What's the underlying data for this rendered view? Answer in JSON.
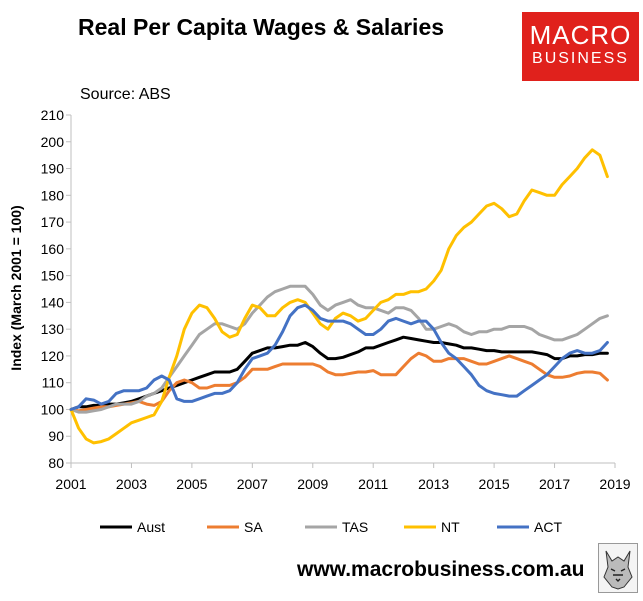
{
  "header": {
    "title": "Real Per Capita Wages & Salaries",
    "source": "Source: ABS",
    "logo_line1": "MACRO",
    "logo_line2": "BUSINESS",
    "website": "www.macrobusiness.com.au"
  },
  "colors": {
    "logo_bg": "#e0211c",
    "axis": "#bfbfbf"
  },
  "chart_data": {
    "type": "line",
    "title": "Real Per Capita Wages & Salaries",
    "xlabel": "",
    "ylabel": "Index (March 2001 = 100)",
    "xlim": [
      2001,
      2019
    ],
    "ylim": [
      80,
      210
    ],
    "yticks": [
      80,
      90,
      100,
      110,
      120,
      130,
      140,
      150,
      160,
      170,
      180,
      190,
      200,
      210
    ],
    "xticks": [
      2001,
      2003,
      2005,
      2007,
      2009,
      2011,
      2013,
      2015,
      2017,
      2019
    ],
    "grid": false,
    "legend": "bottom",
    "x": [
      2001.0,
      2001.25,
      2001.5,
      2001.75,
      2002.0,
      2002.25,
      2002.5,
      2002.75,
      2003.0,
      2003.25,
      2003.5,
      2003.75,
      2004.0,
      2004.25,
      2004.5,
      2004.75,
      2005.0,
      2005.25,
      2005.5,
      2005.75,
      2006.0,
      2006.25,
      2006.5,
      2006.75,
      2007.0,
      2007.25,
      2007.5,
      2007.75,
      2008.0,
      2008.25,
      2008.5,
      2008.75,
      2009.0,
      2009.25,
      2009.5,
      2009.75,
      2010.0,
      2010.25,
      2010.5,
      2010.75,
      2011.0,
      2011.25,
      2011.5,
      2011.75,
      2012.0,
      2012.25,
      2012.5,
      2012.75,
      2013.0,
      2013.25,
      2013.5,
      2013.75,
      2014.0,
      2014.25,
      2014.5,
      2014.75,
      2015.0,
      2015.25,
      2015.5,
      2015.75,
      2016.0,
      2016.25,
      2016.5,
      2016.75,
      2017.0,
      2017.25,
      2017.5,
      2017.75,
      2018.0,
      2018.25,
      2018.5,
      2018.75
    ],
    "series": [
      {
        "name": "Aust",
        "color": "#000000",
        "values": [
          100,
          101,
          101,
          101.5,
          101.5,
          102,
          102,
          102.5,
          103,
          104,
          105,
          106,
          107,
          108,
          109,
          110,
          111,
          112,
          113,
          114,
          114,
          114,
          115,
          118,
          121,
          122,
          123,
          123,
          123.5,
          124,
          124,
          125,
          123.5,
          121,
          119,
          119,
          119.5,
          120.5,
          121.5,
          123,
          123,
          124,
          125,
          126,
          127,
          126.5,
          126,
          125.5,
          125,
          125,
          124.5,
          124,
          123,
          123,
          122.5,
          122,
          122,
          121.5,
          121.5,
          121.5,
          121.5,
          121.5,
          121,
          120.5,
          119,
          119,
          120,
          120,
          120.5,
          120.5,
          121,
          121
        ]
      },
      {
        "name": "SA",
        "color": "#ed7d31",
        "values": [
          100,
          99.5,
          100,
          100.5,
          101,
          101,
          101.5,
          102,
          102.5,
          103,
          102,
          101.5,
          103,
          107,
          110,
          111,
          110,
          108,
          108,
          109,
          109,
          109,
          110,
          112,
          115,
          115,
          115,
          116,
          117,
          117,
          117,
          117,
          117,
          116,
          114,
          113,
          113,
          113.5,
          114,
          114,
          114.5,
          113,
          113,
          113,
          116,
          119,
          121,
          120,
          118,
          118,
          119,
          119,
          119,
          118,
          117,
          117,
          118,
          119,
          120,
          119,
          118,
          117,
          115,
          113,
          112,
          112,
          112.5,
          113.5,
          114,
          114,
          113.5,
          111
        ]
      },
      {
        "name": "TAS",
        "color": "#a5a5a5",
        "values": [
          100,
          99,
          99,
          99.5,
          100,
          101,
          102,
          102,
          102,
          103,
          105,
          106,
          108,
          112,
          116,
          120,
          124,
          128,
          130,
          132,
          132,
          131,
          130,
          132,
          136,
          139,
          142,
          144,
          145,
          146,
          146,
          146,
          143,
          139,
          137,
          139,
          140,
          141,
          139,
          138,
          138,
          137,
          136,
          138,
          138,
          137,
          134,
          130,
          130,
          131,
          132,
          131,
          129,
          128,
          129,
          129,
          130,
          130,
          131,
          131,
          131,
          130,
          128,
          127,
          126,
          126,
          127,
          128,
          130,
          132,
          134,
          135
        ]
      },
      {
        "name": "NT",
        "color": "#ffc000",
        "values": [
          100,
          93,
          89,
          87.5,
          88,
          89,
          91,
          93,
          95,
          96,
          97,
          98,
          103,
          112,
          120,
          130,
          136,
          139,
          138,
          134,
          129,
          127,
          128,
          134,
          139,
          138,
          135,
          135,
          138,
          140,
          141,
          140,
          136,
          132,
          130,
          134,
          136,
          135,
          133,
          134,
          137,
          140,
          141,
          143,
          143,
          144,
          144,
          145,
          148,
          152,
          160,
          165,
          168,
          170,
          173,
          176,
          177,
          175,
          172,
          173,
          178,
          182,
          181,
          180,
          180,
          184,
          187,
          190,
          194,
          197,
          195,
          187
        ]
      },
      {
        "name": "ACT",
        "color": "#4472c4",
        "values": [
          100,
          101,
          104,
          103.5,
          102,
          103,
          106,
          107,
          107,
          107,
          108,
          111,
          112.5,
          111,
          104,
          103,
          103,
          104,
          105,
          106,
          106,
          107,
          110,
          115,
          119,
          120,
          121,
          124,
          129,
          135,
          138,
          139,
          137,
          134,
          133,
          133,
          133,
          132,
          130,
          128,
          128,
          130,
          133,
          134,
          133,
          132,
          133,
          133,
          130,
          125,
          121,
          119,
          116,
          113,
          109,
          107,
          106,
          105.5,
          105,
          105,
          107,
          109,
          111,
          113,
          116,
          119,
          121,
          122,
          121,
          121,
          122,
          125
        ]
      }
    ]
  }
}
